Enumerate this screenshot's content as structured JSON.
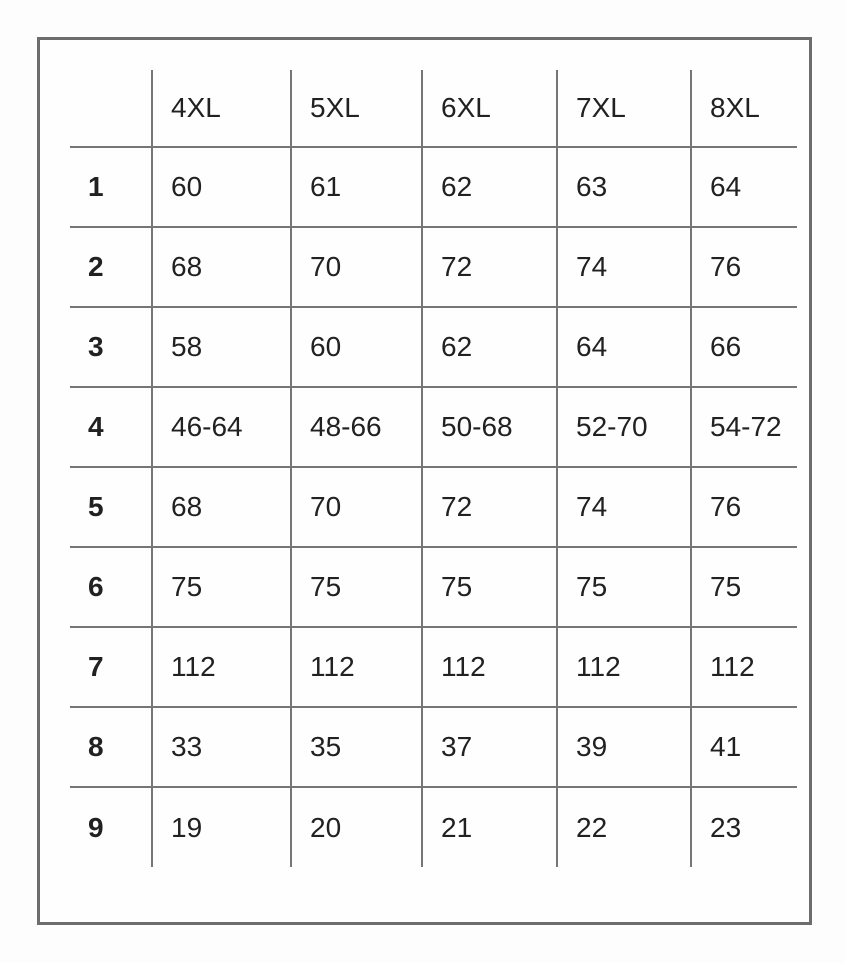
{
  "chart_data": {
    "type": "table",
    "title": "",
    "columns": [
      "4XL",
      "5XL",
      "6XL",
      "7XL",
      "8XL"
    ],
    "rows": [
      {
        "label": "1",
        "values": [
          "60",
          "61",
          "62",
          "63",
          "64"
        ]
      },
      {
        "label": "2",
        "values": [
          "68",
          "70",
          "72",
          "74",
          "76"
        ]
      },
      {
        "label": "3",
        "values": [
          "58",
          "60",
          "62",
          "64",
          "66"
        ]
      },
      {
        "label": "4",
        "values": [
          "46-64",
          "48-66",
          "50-68",
          "52-70",
          "54-72"
        ]
      },
      {
        "label": "5",
        "values": [
          "68",
          "70",
          "72",
          "74",
          "76"
        ]
      },
      {
        "label": "6",
        "values": [
          "75",
          "75",
          "75",
          "75",
          "75"
        ]
      },
      {
        "label": "7",
        "values": [
          "112",
          "112",
          "112",
          "112",
          "112"
        ]
      },
      {
        "label": "8",
        "values": [
          "33",
          "35",
          "37",
          "39",
          "41"
        ]
      },
      {
        "label": "9",
        "values": [
          "19",
          "20",
          "21",
          "22",
          "23"
        ]
      }
    ],
    "layout": {
      "corner_cell": "",
      "grid": "on",
      "outer_frame": "on"
    },
    "colors": {
      "grid_line": "#767676",
      "frame_border": "#6d6d6d",
      "text": "#212121",
      "background": "#fefefe"
    }
  }
}
